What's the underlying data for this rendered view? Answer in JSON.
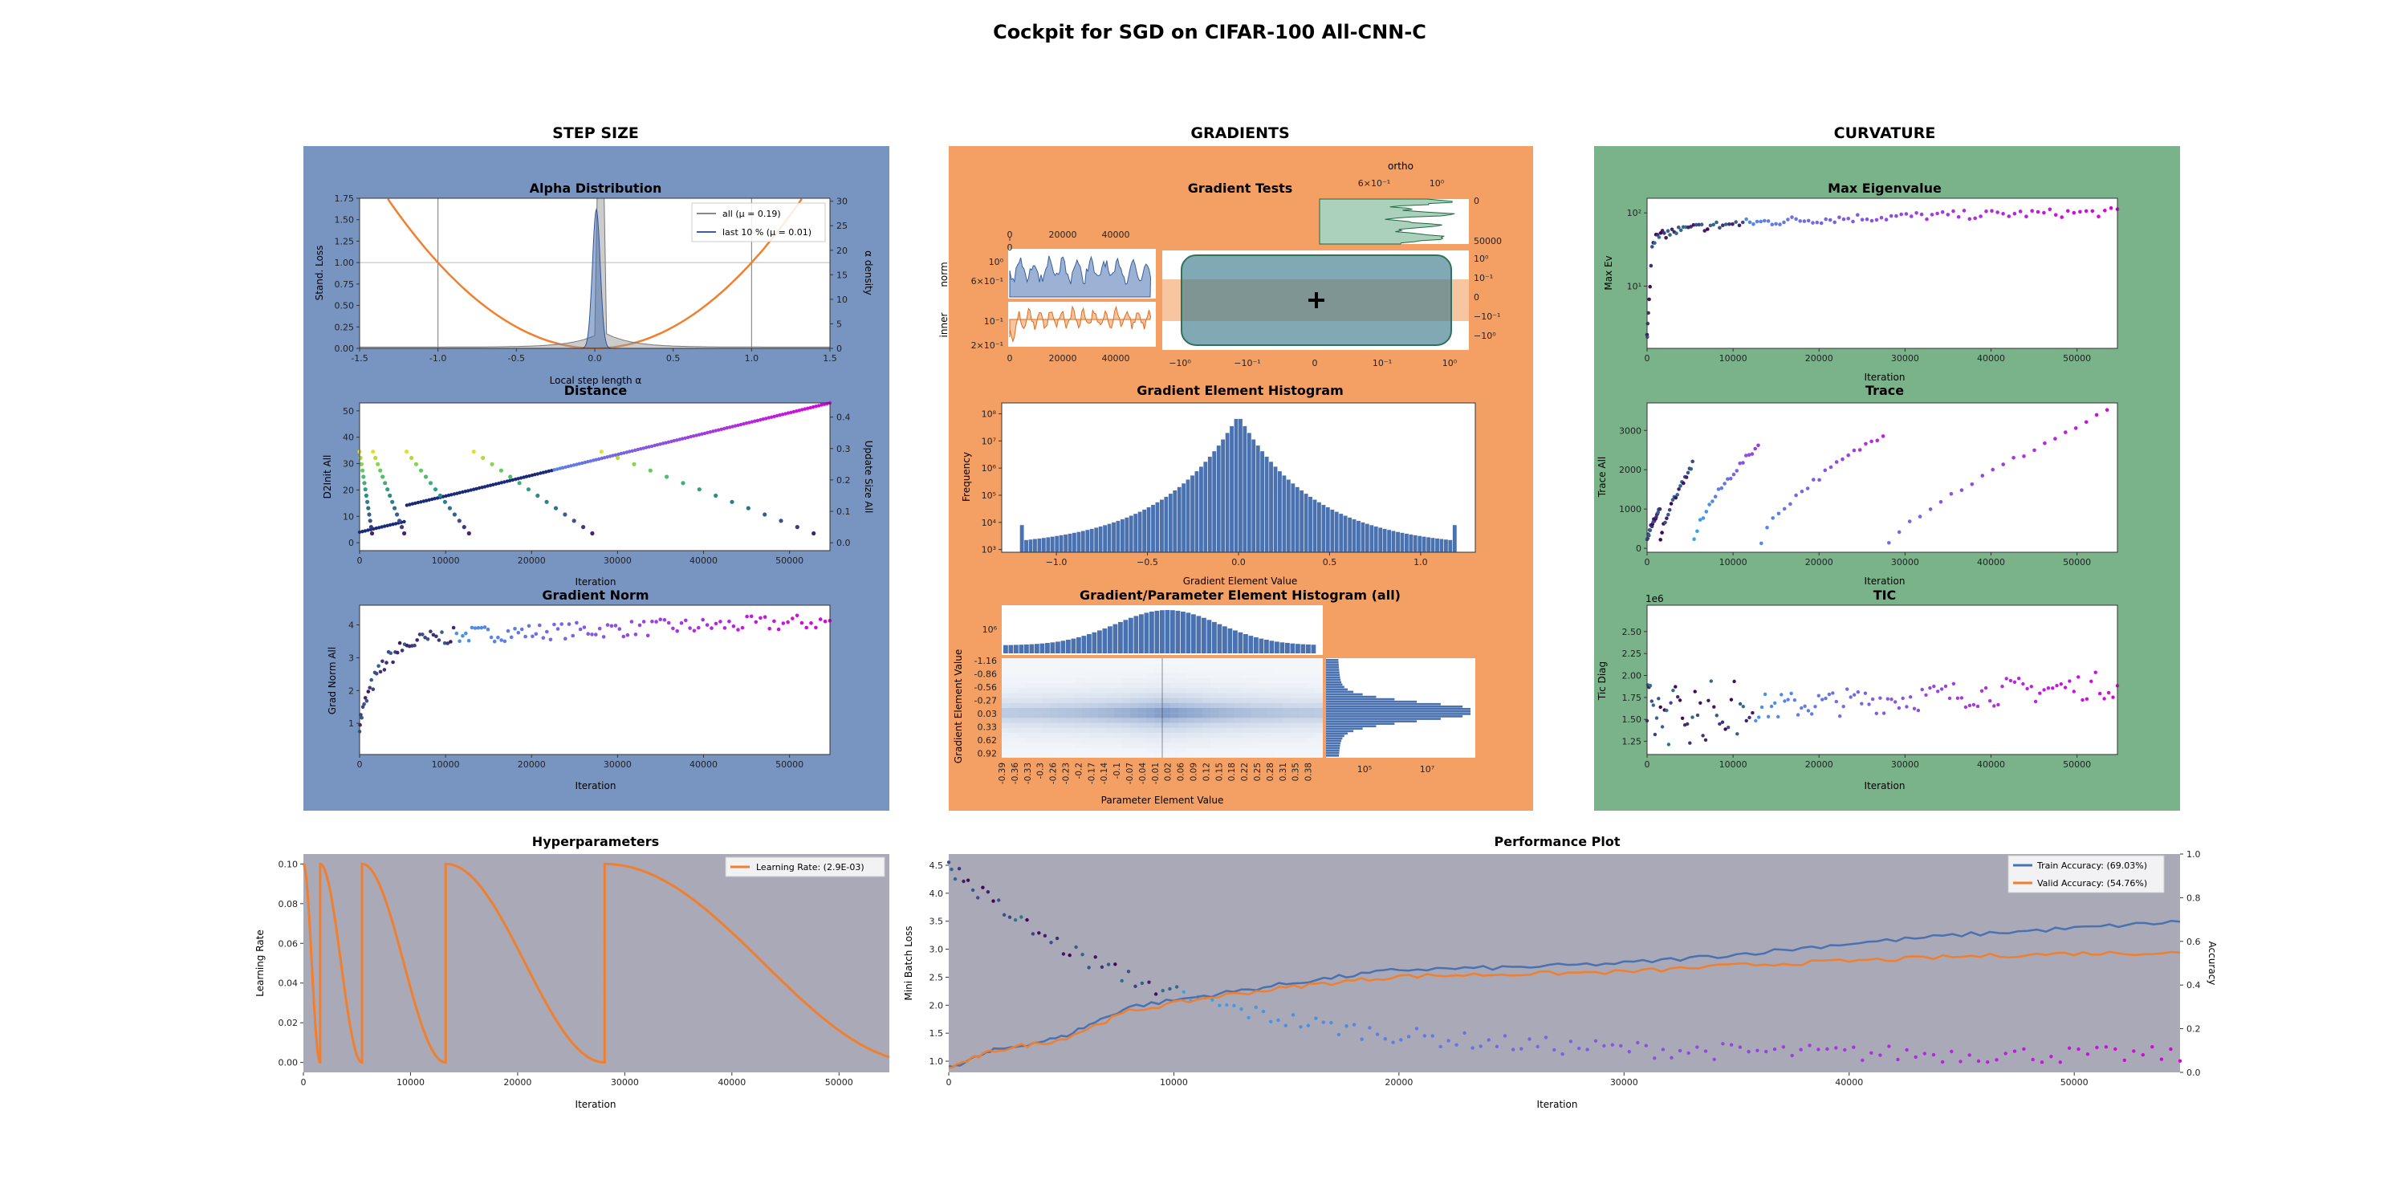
{
  "title": "Cockpit for SGD on CIFAR-100 All-CNN-C",
  "sections": {
    "step_size": {
      "label": "STEP SIZE",
      "color": "#7895c2"
    },
    "gradients": {
      "label": "GRADIENTS",
      "color": "#f4a064"
    },
    "curvature": {
      "label": "CURVATURE",
      "color": "#7ab38a"
    }
  },
  "colors": {
    "orange": "#f07f2e",
    "blue": "#4a72b0",
    "green": "#2e8b57",
    "plot_bg": "#ffffff",
    "hyper_bg": "#a9a9b8"
  },
  "alpha": {
    "title": "Alpha Distribution",
    "xlabel": "Local step length α",
    "ylabel_left": "Stand. Loss",
    "ylabel_right": "α density",
    "xticks": [
      "-1.5",
      "-1.0",
      "-0.5",
      "0.0",
      "0.5",
      "1.0",
      "1.5"
    ],
    "yticks_left": [
      "0.00",
      "0.25",
      "0.50",
      "0.75",
      "1.00",
      "1.25",
      "1.50",
      "1.75"
    ],
    "yticks_right": [
      "0",
      "5",
      "10",
      "15",
      "20",
      "25",
      "30"
    ],
    "legend": [
      "all (μ = 0.19)",
      "last 10 % (μ = 0.01)"
    ]
  },
  "distance": {
    "title": "Distance",
    "xlabel": "Iteration",
    "ylabel_left": "D2Init All",
    "ylabel_right": "Update Size All",
    "xticks": [
      "0",
      "10000",
      "20000",
      "30000",
      "40000",
      "50000"
    ],
    "yticks_left": [
      "0",
      "10",
      "20",
      "30",
      "40",
      "50"
    ],
    "yticks_right": [
      "0.0",
      "0.1",
      "0.2",
      "0.3",
      "0.4"
    ]
  },
  "gradnorm": {
    "title": "Gradient Norm",
    "xlabel": "Iteration",
    "ylabel": "Grad Norm All",
    "xticks": [
      "0",
      "10000",
      "20000",
      "30000",
      "40000",
      "50000"
    ],
    "yticks": [
      "1",
      "2",
      "3",
      "4"
    ]
  },
  "gradtests": {
    "title": "Gradient Tests",
    "ortho_label": "ortho",
    "norm_label": "norm",
    "inner_label": "inner",
    "xticks_top": [
      "0",
      "20000",
      "40000"
    ],
    "xticks_bottom": [
      "0",
      "20000",
      "40000"
    ],
    "norm_yticks": [
      "10⁰",
      "6×10⁻¹"
    ],
    "inner_yticks": [
      "10⁻¹",
      "2×10⁻¹"
    ],
    "ortho_xticks": [
      "6×10⁻¹",
      "10⁰"
    ],
    "ortho_yticks": [
      "0",
      "50000"
    ],
    "center_xticks": [
      "−10⁰",
      "−10⁻¹",
      "0",
      "10⁻¹",
      "10⁰"
    ],
    "center_yticks": [
      "10⁰",
      "10⁻¹",
      "0",
      "−10⁻¹",
      "−10⁰"
    ]
  },
  "grad_hist": {
    "title": "Gradient Element Histogram",
    "xlabel": "Gradient Element Value",
    "ylabel": "Frequency",
    "xticks": [
      "−1.0",
      "−0.5",
      "0.0",
      "0.5",
      "1.0"
    ],
    "yticks": [
      "10³",
      "10⁴",
      "10⁵",
      "10⁶",
      "10⁷",
      "10⁸"
    ]
  },
  "gp_hist": {
    "title": "Gradient/Parameter Element Histogram (all)",
    "xlabel": "Parameter Element Value",
    "ylabel": "Gradient Element Value",
    "top_ytick": "10⁶",
    "right_xticks": [
      "10⁵",
      "10⁷"
    ],
    "yticks": [
      "-1.16",
      "-0.86",
      "-0.56",
      "-0.27",
      "0.03",
      "0.33",
      "0.62",
      "0.92"
    ],
    "xticks": [
      "-0.39",
      "-0.36",
      "-0.33",
      "-0.3",
      "-0.26",
      "-0.23",
      "-0.2",
      "-0.17",
      "-0.14",
      "-0.1",
      "-0.07",
      "-0.04",
      "-0.01",
      "0.02",
      "0.06",
      "0.09",
      "0.12",
      "0.15",
      "0.18",
      "0.22",
      "0.25",
      "0.28",
      "0.31",
      "0.35",
      "0.38"
    ]
  },
  "maxev": {
    "title": "Max Eigenvalue",
    "xlabel": "Iteration",
    "ylabel": "Max Ev",
    "xticks": [
      "0",
      "10000",
      "20000",
      "30000",
      "40000",
      "50000"
    ],
    "yticks": [
      "10¹",
      "10²"
    ]
  },
  "trace": {
    "title": "Trace",
    "xlabel": "Iteration",
    "ylabel": "Trace All",
    "xticks": [
      "0",
      "10000",
      "20000",
      "30000",
      "40000",
      "50000"
    ],
    "yticks": [
      "0",
      "1000",
      "2000",
      "3000"
    ]
  },
  "tic": {
    "title": "TIC",
    "xlabel": "Iteration",
    "ylabel": "Tic Diag",
    "offset": "1e6",
    "xticks": [
      "0",
      "10000",
      "20000",
      "30000",
      "40000",
      "50000"
    ],
    "yticks": [
      "1.25",
      "1.50",
      "1.75",
      "2.00",
      "2.25",
      "2.50"
    ]
  },
  "chart_data": [
    {
      "type": "line",
      "title": "Hyperparameters",
      "xlabel": "Iteration",
      "ylabel": "Learning Rate",
      "xlim": [
        0,
        54700
      ],
      "ylim": [
        -0.005,
        0.105
      ],
      "xticks": [
        "0",
        "10000",
        "20000",
        "30000",
        "40000",
        "50000"
      ],
      "yticks": [
        "0.00",
        "0.02",
        "0.04",
        "0.06",
        "0.08",
        "0.10"
      ],
      "legend": "Learning Rate: (2.9E-03)",
      "restarts": [
        0,
        1563,
        5469,
        13281,
        28125
      ],
      "lr_max": 0.1
    },
    {
      "type": "line",
      "title": "Performance Plot",
      "xlabel": "Iteration",
      "ylabel_left": "Mini Batch Loss",
      "ylabel_right": "Accuracy",
      "xticks": [
        "0",
        "10000",
        "20000",
        "30000",
        "40000",
        "50000"
      ],
      "yticks_left": [
        "1.0",
        "1.5",
        "2.0",
        "2.5",
        "3.0",
        "3.5",
        "4.0",
        "4.5"
      ],
      "yticks_right": [
        "0.0",
        "0.2",
        "0.4",
        "0.6",
        "0.8",
        "1.0"
      ],
      "series": [
        {
          "name": "Train Accuracy: (69.03%)",
          "x": [
            0,
            2000,
            5000,
            8000,
            12000,
            16000,
            20000,
            25000,
            30000,
            35000,
            40000,
            45000,
            50000,
            54700
          ],
          "values": [
            0.02,
            0.1,
            0.16,
            0.3,
            0.36,
            0.42,
            0.47,
            0.48,
            0.5,
            0.54,
            0.59,
            0.63,
            0.66,
            0.69
          ]
        },
        {
          "name": "Valid Accuracy: (54.76%)",
          "x": [
            0,
            2000,
            5000,
            8000,
            12000,
            16000,
            20000,
            25000,
            30000,
            35000,
            40000,
            45000,
            50000,
            54700
          ],
          "values": [
            0.02,
            0.1,
            0.15,
            0.28,
            0.35,
            0.4,
            0.44,
            0.45,
            0.46,
            0.49,
            0.51,
            0.53,
            0.545,
            0.548
          ]
        }
      ]
    }
  ]
}
